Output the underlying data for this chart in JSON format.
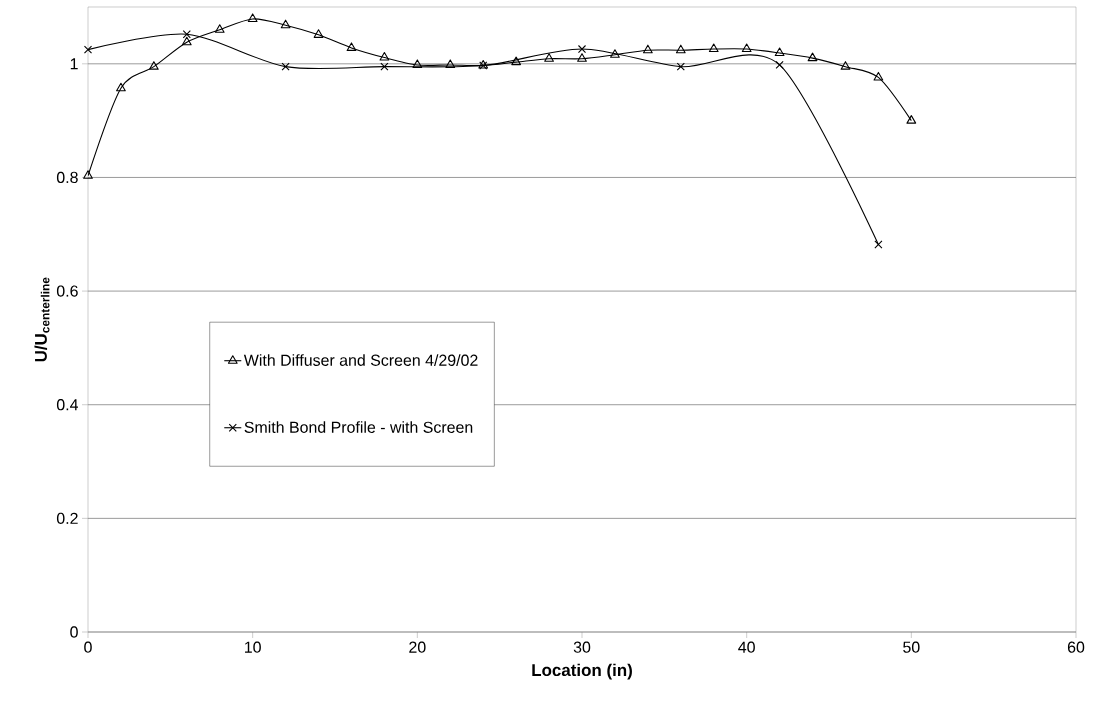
{
  "chart_data": {
    "type": "line",
    "xlabel": "Location (in)",
    "ylabel": "\\text{\\bfseries U/U}_{\\text{\\bfseries centerline}}",
    "xlim": [
      0,
      60
    ],
    "xticks": [
      0,
      10,
      20,
      30,
      40,
      50,
      60
    ],
    "ylim": [
      0,
      1.1
    ],
    "yticks": [
      0,
      0.2,
      0.4,
      0.6,
      0.8,
      1
    ],
    "grid": "y",
    "legend": "left",
    "line_style": "solid",
    "series": [
      {
        "name": "With Diffuser and Screen 4/29/02",
        "color": "#000000",
        "marker": "triangle",
        "x": [
          0,
          2,
          4,
          6,
          8,
          10,
          12,
          14,
          16,
          18,
          20,
          22,
          24,
          26,
          28,
          30,
          32,
          34,
          36,
          38,
          40,
          42,
          44,
          46,
          48,
          50
        ],
        "values": [
          0.803,
          0.957,
          0.995,
          1.038,
          1.06,
          1.079,
          1.068,
          1.051,
          1.028,
          1.011,
          0.998,
          0.998,
          0.997,
          1.003,
          1.009,
          1.009,
          1.016,
          1.024,
          1.024,
          1.026,
          1.026,
          1.019,
          1.01,
          0.995,
          0.976,
          0.9
        ]
      },
      {
        "name": "Smith Bond Profile - with Screen",
        "color": "#000000",
        "marker": "cross",
        "x": [
          0,
          6,
          12,
          18,
          24,
          30,
          36,
          42,
          48
        ],
        "values": [
          1.025,
          1.052,
          0.995,
          0.995,
          0.997,
          1.026,
          0.995,
          0.998,
          0.682
        ]
      }
    ]
  }
}
